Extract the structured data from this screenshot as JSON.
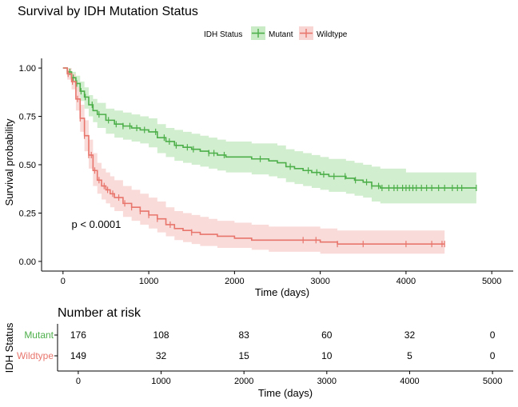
{
  "chart_data": {
    "type": "line",
    "title": "Survival by IDH Mutation Status",
    "xlabel": "Time (days)",
    "ylabel": "Survival probability",
    "xlim": [
      -250,
      5250
    ],
    "ylim": [
      -0.05,
      1.05
    ],
    "xticks": [
      0,
      1000,
      2000,
      3000,
      4000,
      5000
    ],
    "yticks": [
      0.0,
      0.25,
      0.5,
      0.75,
      1.0
    ],
    "ytick_labels": [
      "0.00",
      "0.25",
      "0.50",
      "0.75",
      "1.00"
    ],
    "grid": false,
    "legend": {
      "title": "IDH Status",
      "position": "top"
    },
    "annotation": "p < 0.0001",
    "annotation_pos": {
      "x": 100,
      "y": 0.195
    },
    "series": [
      {
        "name": "Mutant",
        "color": "#4daf4a",
        "fill": "#c9ebc6",
        "x": [
          0,
          50,
          100,
          150,
          200,
          250,
          300,
          350,
          400,
          500,
          600,
          700,
          800,
          900,
          1000,
          1100,
          1200,
          1300,
          1400,
          1500,
          1600,
          1700,
          1800,
          1900,
          2000,
          2200,
          2400,
          2500,
          2600,
          2700,
          2800,
          2900,
          3000,
          3100,
          3200,
          3300,
          3400,
          3500,
          3600,
          3700,
          3800,
          4000,
          4400,
          4820
        ],
        "y": [
          1.0,
          0.98,
          0.95,
          0.92,
          0.88,
          0.85,
          0.81,
          0.78,
          0.76,
          0.73,
          0.71,
          0.7,
          0.69,
          0.68,
          0.67,
          0.64,
          0.62,
          0.6,
          0.59,
          0.58,
          0.57,
          0.56,
          0.55,
          0.54,
          0.54,
          0.53,
          0.52,
          0.51,
          0.49,
          0.48,
          0.47,
          0.46,
          0.45,
          0.44,
          0.44,
          0.43,
          0.42,
          0.41,
          0.39,
          0.38,
          0.38,
          0.38,
          0.38,
          0.38
        ],
        "upper": [
          1.0,
          1.0,
          0.98,
          0.96,
          0.93,
          0.9,
          0.86,
          0.84,
          0.82,
          0.79,
          0.78,
          0.77,
          0.76,
          0.75,
          0.74,
          0.71,
          0.69,
          0.68,
          0.67,
          0.66,
          0.65,
          0.64,
          0.63,
          0.62,
          0.62,
          0.61,
          0.61,
          0.6,
          0.58,
          0.57,
          0.56,
          0.55,
          0.54,
          0.53,
          0.53,
          0.52,
          0.51,
          0.5,
          0.49,
          0.48,
          0.48,
          0.46,
          0.46,
          0.46
        ],
        "lower": [
          1.0,
          0.96,
          0.92,
          0.88,
          0.83,
          0.79,
          0.75,
          0.72,
          0.69,
          0.66,
          0.64,
          0.63,
          0.62,
          0.61,
          0.59,
          0.56,
          0.54,
          0.52,
          0.51,
          0.5,
          0.49,
          0.48,
          0.47,
          0.46,
          0.46,
          0.45,
          0.44,
          0.43,
          0.41,
          0.4,
          0.39,
          0.38,
          0.37,
          0.36,
          0.36,
          0.35,
          0.34,
          0.33,
          0.31,
          0.3,
          0.3,
          0.3,
          0.3,
          0.3
        ],
        "censor_x": [
          80,
          120,
          160,
          210,
          260,
          340,
          420,
          530,
          620,
          700,
          780,
          860,
          950,
          1080,
          1180,
          1240,
          1320,
          1450,
          1520,
          1700,
          1760,
          1880,
          2300,
          2650,
          2860,
          2960,
          3040,
          3160,
          3290,
          3410,
          3540,
          3600,
          3680,
          3720,
          3800,
          3860,
          3900,
          3960,
          4000,
          4040,
          4080,
          4120,
          4180,
          4240,
          4300,
          4380,
          4450,
          4540,
          4600,
          4650,
          4820
        ]
      },
      {
        "name": "Wildtype",
        "color": "#e8766d",
        "fill": "#f8d5d2",
        "x": [
          0,
          50,
          100,
          150,
          200,
          250,
          300,
          350,
          400,
          450,
          500,
          550,
          600,
          700,
          800,
          900,
          1000,
          1100,
          1200,
          1300,
          1400,
          1500,
          1600,
          1700,
          1800,
          1900,
          2000,
          2200,
          2400,
          2700,
          3000,
          3200,
          3400,
          3600,
          4000,
          4450
        ],
        "y": [
          1.0,
          0.97,
          0.93,
          0.84,
          0.74,
          0.65,
          0.55,
          0.47,
          0.42,
          0.39,
          0.37,
          0.35,
          0.33,
          0.3,
          0.28,
          0.26,
          0.24,
          0.22,
          0.19,
          0.17,
          0.16,
          0.15,
          0.14,
          0.14,
          0.13,
          0.13,
          0.12,
          0.11,
          0.11,
          0.11,
          0.1,
          0.09,
          0.09,
          0.09,
          0.09,
          0.09
        ],
        "upper": [
          1.0,
          1.0,
          0.97,
          0.9,
          0.81,
          0.73,
          0.63,
          0.56,
          0.51,
          0.48,
          0.46,
          0.44,
          0.42,
          0.39,
          0.37,
          0.35,
          0.33,
          0.31,
          0.28,
          0.26,
          0.25,
          0.24,
          0.23,
          0.22,
          0.21,
          0.21,
          0.2,
          0.19,
          0.18,
          0.18,
          0.17,
          0.16,
          0.16,
          0.16,
          0.16,
          0.16
        ],
        "lower": [
          1.0,
          0.94,
          0.89,
          0.78,
          0.67,
          0.57,
          0.48,
          0.39,
          0.35,
          0.32,
          0.3,
          0.28,
          0.26,
          0.23,
          0.21,
          0.19,
          0.17,
          0.15,
          0.13,
          0.11,
          0.1,
          0.09,
          0.08,
          0.08,
          0.07,
          0.07,
          0.07,
          0.06,
          0.05,
          0.05,
          0.04,
          0.04,
          0.04,
          0.04,
          0.04,
          0.04
        ],
        "censor_x": [
          60,
          110,
          170,
          200,
          250,
          300,
          330,
          370,
          420,
          480,
          520,
          580,
          650,
          720,
          800,
          900,
          1000,
          1100,
          1250,
          1500,
          2800,
          2950,
          3200,
          3500,
          4000,
          4300,
          4420,
          4450
        ]
      }
    ],
    "risk_table": {
      "title": "Number at risk",
      "ylabel": "IDH Status",
      "xlabel": "Time (days)",
      "xticks": [
        0,
        1000,
        2000,
        3000,
        4000,
        5000
      ],
      "rows": [
        {
          "name": "Mutant",
          "values": [
            "176",
            "108",
            "83",
            "60",
            "32",
            "0"
          ]
        },
        {
          "name": "Wildtype",
          "values": [
            "149",
            "32",
            "15",
            "10",
            "5",
            "0"
          ]
        }
      ]
    }
  }
}
